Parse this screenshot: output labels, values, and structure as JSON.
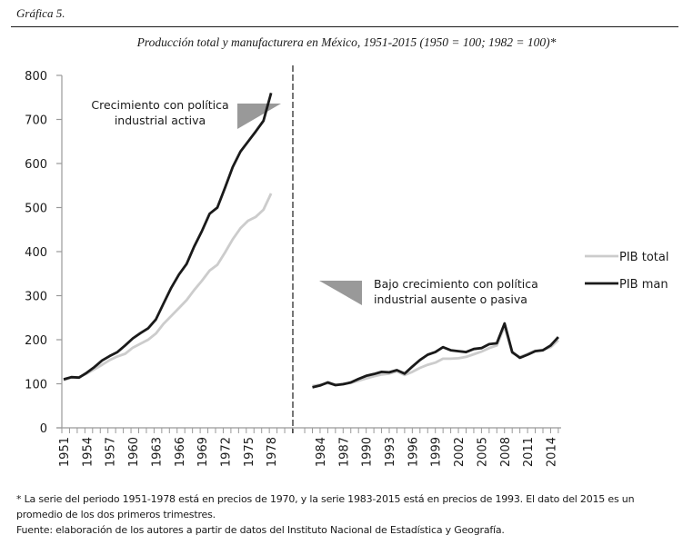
{
  "figure_label": "Gráfica 5.",
  "chart_data": {
    "type": "line",
    "title": "Producción total y manufacturera en México, 1951-2015 (1950 = 100; 1982 = 100)*",
    "xlabel": "",
    "ylabel": "",
    "ylim": [
      0,
      800
    ],
    "yticks": [
      0,
      100,
      200,
      300,
      400,
      500,
      600,
      700,
      800
    ],
    "grid": false,
    "legend_position": "right",
    "panels": [
      {
        "name": "1951-1978",
        "x_range": [
          1951,
          1981
        ],
        "x": [
          1951,
          1952,
          1953,
          1954,
          1955,
          1956,
          1957,
          1958,
          1959,
          1960,
          1961,
          1962,
          1963,
          1964,
          1965,
          1966,
          1967,
          1968,
          1969,
          1970,
          1971,
          1972,
          1973,
          1974,
          1975,
          1976,
          1977,
          1978
        ],
        "xtick_labels": [
          "1951",
          "1954",
          "1957",
          "1960",
          "1963",
          "1966",
          "1969",
          "1972",
          "1975",
          "1978"
        ],
        "series": [
          {
            "name": "PIB total",
            "color": "#cccccc",
            "values": [
              108,
              114,
              115,
              123,
              133,
              143,
              154,
              162,
              168,
              182,
              191,
              200,
              214,
              236,
              254,
              272,
              290,
              313,
              334,
              357,
              370,
              398,
              428,
              453,
              470,
              479,
              495,
              532
            ]
          },
          {
            "name": "PIB man",
            "color": "#1a1a1a",
            "values": [
              110,
              115,
              114,
              125,
              138,
              153,
              163,
              172,
              187,
              203,
              215,
              226,
              246,
              282,
              318,
              348,
              372,
              412,
              447,
              486,
              500,
              545,
              592,
              627,
              650,
              673,
              697,
              760
            ]
          }
        ],
        "annotation": "Crecimiento con política industrial activa",
        "annotation_lines": [
          "Crecimiento con política",
          "industrial activa"
        ]
      },
      {
        "name": "1983-2015",
        "x_range": [
          1982,
          2015
        ],
        "x": [
          1983,
          1984,
          1985,
          1986,
          1987,
          1988,
          1989,
          1990,
          1991,
          1992,
          1993,
          1994,
          1995,
          1996,
          1997,
          1998,
          1999,
          2000,
          2001,
          2002,
          2003,
          2004,
          2005,
          2006,
          2007,
          2008,
          2009,
          2010,
          2011,
          2012,
          2013,
          2014,
          2015
        ],
        "xtick_labels": [
          "1984",
          "1987",
          "1990",
          "1993",
          "1996",
          "1999",
          "2002",
          "2005",
          "2008",
          "2011",
          "2014"
        ],
        "series": [
          {
            "name": "PIB total",
            "color": "#cccccc",
            "values": [
              95,
              98,
              101,
              98,
              100,
              102,
              107,
              112,
              117,
              121,
              123,
              128,
              120,
              127,
              136,
              143,
              148,
              157,
              157,
              158,
              161,
              167,
              173,
              181,
              187,
              230,
              170,
              161,
              168,
              175,
              177,
              183,
              199
            ]
          },
          {
            "name": "PIB man",
            "color": "#1a1a1a",
            "values": [
              92,
              96,
              103,
              97,
              99,
              103,
              111,
              118,
              122,
              127,
              126,
              131,
              123,
              139,
              154,
              166,
              172,
              183,
              176,
              174,
              172,
              179,
              181,
              190,
              192,
              237,
              172,
              159,
              166,
              174,
              176,
              187,
              206
            ]
          }
        ],
        "annotation": "Bajo crecimiento con política industrial ausente o pasiva",
        "annotation_lines": [
          "Bajo crecimiento con política",
          "industrial ausente o pasiva"
        ]
      }
    ],
    "legend": [
      {
        "label": "PIB total",
        "color": "#cccccc"
      },
      {
        "label": "PIB man",
        "color": "#1a1a1a"
      }
    ]
  },
  "notes": {
    "line1": "* La serie del periodo 1951-1978 está en precios de 1970, y la serie 1983-2015 está en precios de 1993. El dato del 2015 es un",
    "line2": "promedio de los dos primeros trimestres.",
    "source": "Fuente: elaboración de los autores a partir de datos del Instituto Nacional de Estadística y Geografía."
  }
}
